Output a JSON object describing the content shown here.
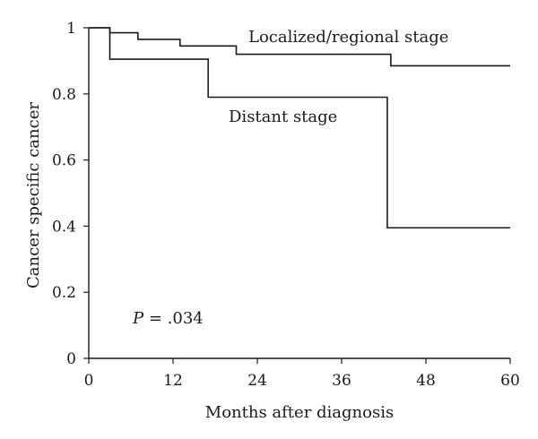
{
  "chart_data": {
    "type": "line",
    "step": true,
    "title": "",
    "xlabel": "Months after diagnosis",
    "ylabel": "Cancer specific cancer",
    "xlim": [
      0,
      60
    ],
    "ylim": [
      0,
      1
    ],
    "x_ticks": [
      0,
      12,
      24,
      36,
      48,
      60
    ],
    "y_ticks": [
      0,
      0.2,
      0.4,
      0.6,
      0.8,
      1
    ],
    "y_tick_labels": [
      "0",
      "0.2",
      "0.4",
      "0.6",
      "0.8",
      "1"
    ],
    "grid": false,
    "legend": "none",
    "series": [
      {
        "name": "Localized/regional stage",
        "x": [
          0,
          3,
          7,
          13,
          21,
          43,
          60
        ],
        "y": [
          1.0,
          0.985,
          0.965,
          0.945,
          0.92,
          0.885,
          0.885
        ]
      },
      {
        "name": "Distant stage",
        "x": [
          0,
          3,
          17,
          42.5,
          60
        ],
        "y": [
          1.0,
          0.905,
          0.79,
          0.395,
          0.395
        ]
      }
    ],
    "annotations": [
      {
        "italic": "P",
        "text": " = .034"
      }
    ]
  }
}
